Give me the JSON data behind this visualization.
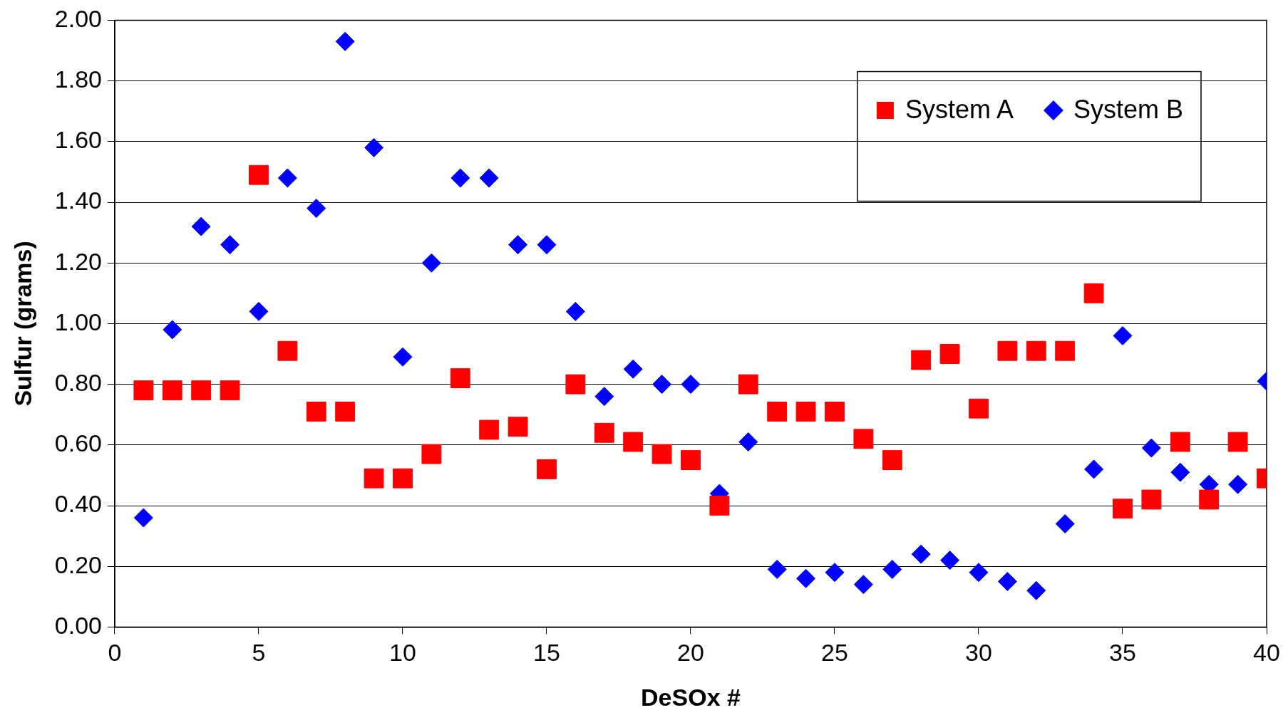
{
  "chart_data": {
    "type": "scatter",
    "xlabel": "DeSOx #",
    "ylabel": "Sulfur (grams)",
    "x": [
      1,
      2,
      3,
      4,
      5,
      6,
      7,
      8,
      9,
      10,
      11,
      12,
      13,
      14,
      15,
      16,
      17,
      18,
      19,
      20,
      21,
      22,
      23,
      24,
      25,
      26,
      27,
      28,
      29,
      30,
      31,
      32,
      33,
      34,
      35,
      36,
      37,
      38,
      39,
      40
    ],
    "series": [
      {
        "name": "System A",
        "color": "#ff0000",
        "marker": "square",
        "values": [
          0.78,
          0.78,
          0.78,
          0.78,
          1.49,
          0.91,
          0.71,
          0.71,
          0.49,
          0.49,
          0.57,
          0.82,
          0.65,
          0.66,
          0.52,
          0.8,
          0.64,
          0.61,
          0.57,
          0.55,
          0.4,
          0.8,
          0.71,
          0.71,
          0.71,
          0.62,
          0.55,
          0.88,
          0.9,
          0.72,
          0.91,
          0.91,
          0.91,
          1.1,
          0.39,
          0.42,
          0.61,
          0.42,
          0.61,
          0.49
        ]
      },
      {
        "name": "System B",
        "color": "#0000ff",
        "marker": "diamond",
        "values": [
          0.36,
          0.98,
          1.32,
          1.26,
          1.04,
          1.48,
          1.38,
          1.93,
          1.58,
          0.89,
          1.2,
          1.48,
          1.48,
          1.26,
          1.26,
          1.04,
          0.76,
          0.85,
          0.8,
          0.8,
          0.44,
          0.61,
          0.19,
          0.16,
          0.18,
          0.14,
          0.19,
          0.24,
          0.22,
          0.18,
          0.15,
          0.12,
          0.34,
          0.52,
          0.96,
          0.59,
          0.51,
          0.47,
          0.47,
          0.81
        ]
      }
    ],
    "xlim": [
      0,
      40
    ],
    "xticks": [
      0,
      5,
      10,
      15,
      20,
      25,
      30,
      35,
      40
    ],
    "ylim": [
      0,
      2
    ],
    "yticks": [
      {
        "value": 0,
        "label": "0.00"
      },
      {
        "value": 0.2,
        "label": "0.20"
      },
      {
        "value": 0.4,
        "label": "0.40"
      },
      {
        "value": 0.6,
        "label": "0.60"
      },
      {
        "value": 0.8,
        "label": "0.80"
      },
      {
        "value": 1,
        "label": "1.00"
      },
      {
        "value": 1.2,
        "label": "1.20"
      },
      {
        "value": 1.4,
        "label": "1.40"
      },
      {
        "value": 1.6,
        "label": "1.60"
      },
      {
        "value": 1.8,
        "label": "1.80"
      },
      {
        "value": 2,
        "label": "2.00"
      }
    ],
    "grid": "y",
    "legend": "top right"
  }
}
